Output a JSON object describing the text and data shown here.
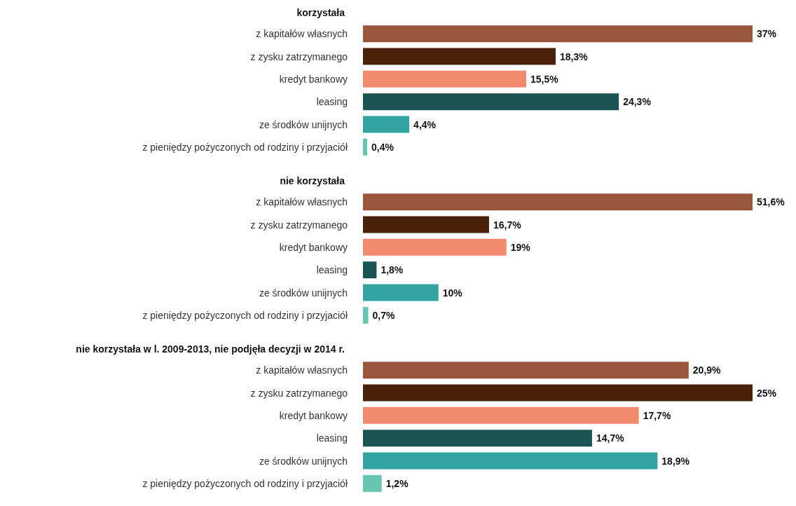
{
  "chart_data": [
    {
      "type": "bar",
      "orientation": "horizontal",
      "title": "korzystała",
      "categories": [
        "z kapitałów własnych",
        "z zysku zatrzymanego",
        "kredyt bankowy",
        "leasing",
        "ze środków unijnych",
        "z pieniędzy pożyczonych od rodziny i przyjaciół"
      ],
      "values": [
        37,
        18.3,
        15.5,
        24.3,
        4.4,
        0.4
      ],
      "value_labels": [
        "37%",
        "18,3%",
        "15,5%",
        "24,3%",
        "4,4%",
        "0,4%"
      ],
      "colors": [
        "#9a563c",
        "#4a210b",
        "#f28b6e",
        "#1b5454",
        "#33a3a3",
        "#66c4b0"
      ],
      "tick_labels": "y"
    },
    {
      "type": "bar",
      "orientation": "horizontal",
      "title": "nie korzystała",
      "categories": [
        "z kapitałów własnych",
        "z zysku zatrzymanego",
        "kredyt bankowy",
        "leasing",
        "ze środków unijnych",
        "z pieniędzy pożyczonych od rodziny i przyjaciół"
      ],
      "values": [
        51.6,
        16.7,
        19,
        1.8,
        10,
        0.7
      ],
      "value_labels": [
        "51,6%",
        "16,7%",
        "19%",
        "1,8%",
        "10%",
        "0,7%"
      ],
      "colors": [
        "#9a563c",
        "#4a210b",
        "#f28b6e",
        "#1b5454",
        "#33a3a3",
        "#66c4b0"
      ],
      "tick_labels": "y"
    },
    {
      "type": "bar",
      "orientation": "horizontal",
      "title": "nie korzystała w l. 2009-2013, nie podjęła decyzji w 2014 r.",
      "categories": [
        "z kapitałów własnych",
        "z zysku zatrzymanego",
        "kredyt bankowy",
        "leasing",
        "ze środków unijnych",
        "z pieniędzy pożyczonych od rodziny i przyjaciół"
      ],
      "values": [
        20.9,
        25,
        17.7,
        14.7,
        18.9,
        1.2
      ],
      "value_labels": [
        "20,9%",
        "25%",
        "17,7%",
        "14,7%",
        "18,9%",
        "1,2%"
      ],
      "colors": [
        "#9a563c",
        "#4a210b",
        "#f28b6e",
        "#1b5454",
        "#33a3a3",
        "#66c4b0"
      ],
      "tick_labels": "y"
    }
  ]
}
